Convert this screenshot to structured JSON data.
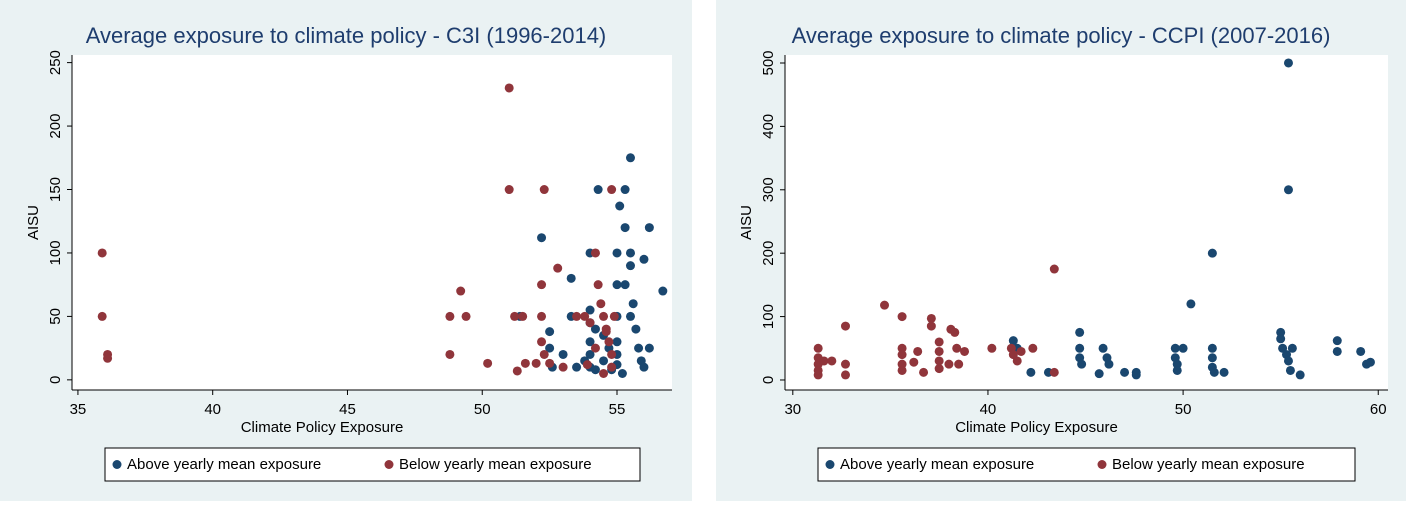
{
  "chart_data": [
    {
      "type": "scatter",
      "title": "Average exposure to climate policy - C3I (1996-2014)",
      "x_label": "Climate Policy Exposure",
      "y_label": "AISU",
      "xlim": [
        34.78,
        57.04
      ],
      "ylim": [
        -8,
        256
      ],
      "xticks": [
        35,
        40,
        45,
        50,
        55
      ],
      "yticks": [
        0,
        50,
        100,
        150,
        200,
        250
      ],
      "grid": false,
      "legend": "bottom",
      "series": [
        {
          "name": "Above yearly mean exposure",
          "color": "#1a476f",
          "x": [
            51.4,
            52.2,
            52.5,
            52.5,
            52.6,
            53,
            53.3,
            53.3,
            54,
            54,
            54,
            54,
            54,
            54,
            54.2,
            54.3,
            54.5,
            54.5,
            54.7,
            55,
            55,
            55,
            55,
            55,
            55,
            55.1,
            55.3,
            55.3,
            55.3,
            55.5,
            55.5,
            55.5,
            55.5,
            55.6,
            55.7,
            55.8,
            55.9,
            56,
            56.2,
            56.2,
            56.7,
            56,
            54.8,
            55.2,
            54.2,
            53.5,
            53.8
          ],
          "values": [
            50,
            112,
            38,
            25,
            10,
            20,
            80,
            50,
            100,
            55,
            45,
            30,
            20,
            10,
            40,
            150,
            35,
            15,
            25,
            100,
            75,
            50,
            30,
            20,
            12,
            137,
            150,
            120,
            75,
            175,
            100,
            50,
            90,
            60,
            40,
            25,
            15,
            95,
            120,
            25,
            70,
            10,
            8,
            5,
            8,
            10,
            15
          ]
        },
        {
          "name": "Below yearly mean exposure",
          "color": "#90353b",
          "x": [
            35.9,
            35.9,
            36.1,
            36.1,
            48.8,
            48.8,
            49.2,
            49.4,
            50.2,
            51,
            51,
            51.2,
            51.3,
            51.5,
            51.6,
            52,
            52.2,
            52.2,
            52.2,
            52.3,
            52.3,
            52.5,
            52.8,
            53,
            53.5,
            53.8,
            54,
            54.2,
            54.3,
            54.4,
            54.5,
            54.6,
            54.7,
            54.8,
            54.8,
            54.8,
            54.5,
            53.9,
            54.2,
            54.9,
            54.6
          ],
          "values": [
            100,
            50,
            20,
            17,
            50,
            20,
            70,
            50,
            13,
            230,
            150,
            50,
            7,
            50,
            13,
            13,
            75,
            50,
            30,
            150,
            20,
            13,
            88,
            10,
            50,
            50,
            45,
            100,
            75,
            60,
            50,
            40,
            30,
            150,
            20,
            10,
            5,
            12,
            25,
            50,
            38
          ]
        }
      ]
    },
    {
      "type": "scatter",
      "title": "Average exposure to climate policy - CCPI (2007-2016)",
      "x_label": "Climate Policy Exposure",
      "y_label": "AISU",
      "xlim": [
        29.6,
        60.5
      ],
      "ylim": [
        -15.8,
        512.6
      ],
      "xticks": [
        30,
        40,
        50,
        60
      ],
      "yticks": [
        0,
        100,
        200,
        300,
        400,
        500
      ],
      "grid": false,
      "legend": "bottom",
      "series": [
        {
          "name": "Above yearly mean exposure",
          "color": "#1a476f",
          "x": [
            41.3,
            41.5,
            42.2,
            43.1,
            44.7,
            44.7,
            44.7,
            44.8,
            45.7,
            45.9,
            46.1,
            46.2,
            47,
            47.6,
            47.6,
            49.6,
            49.6,
            49.7,
            49.7,
            50,
            50.4,
            51.5,
            51.5,
            51.5,
            51.5,
            51.6,
            52.1,
            55,
            55,
            55.1,
            55.3,
            55.4,
            55.4,
            55.4,
            55.5,
            55.6,
            56,
            57.9,
            57.9,
            59.1,
            59.4,
            59.6
          ],
          "values": [
            62,
            50,
            12,
            12,
            75,
            50,
            35,
            25,
            10,
            50,
            35,
            25,
            12,
            8,
            12,
            50,
            35,
            25,
            15,
            50,
            120,
            200,
            50,
            35,
            20,
            12,
            12,
            75,
            65,
            50,
            40,
            500,
            300,
            30,
            15,
            50,
            8,
            62,
            45,
            45,
            25,
            28
          ]
        },
        {
          "name": "Below yearly mean exposure",
          "color": "#90353b",
          "x": [
            31.3,
            31.3,
            31.3,
            31.3,
            31.3,
            31.6,
            32,
            32.7,
            32.7,
            32.7,
            34.7,
            35.6,
            35.6,
            35.6,
            35.6,
            35.6,
            36.2,
            36.4,
            36.7,
            37.1,
            37.1,
            37.5,
            37.5,
            37.5,
            37.5,
            38,
            38.1,
            38.3,
            38.4,
            38.5,
            38.8,
            40.2,
            41.2,
            41.3,
            41.5,
            41.7,
            42.3,
            43.4,
            43.4
          ],
          "values": [
            50,
            35,
            25,
            15,
            8,
            30,
            30,
            85,
            25,
            8,
            118,
            100,
            50,
            40,
            25,
            15,
            28,
            45,
            12,
            97,
            85,
            60,
            45,
            30,
            18,
            25,
            80,
            75,
            50,
            25,
            45,
            50,
            50,
            40,
            30,
            45,
            50,
            175,
            12
          ]
        }
      ]
    }
  ]
}
